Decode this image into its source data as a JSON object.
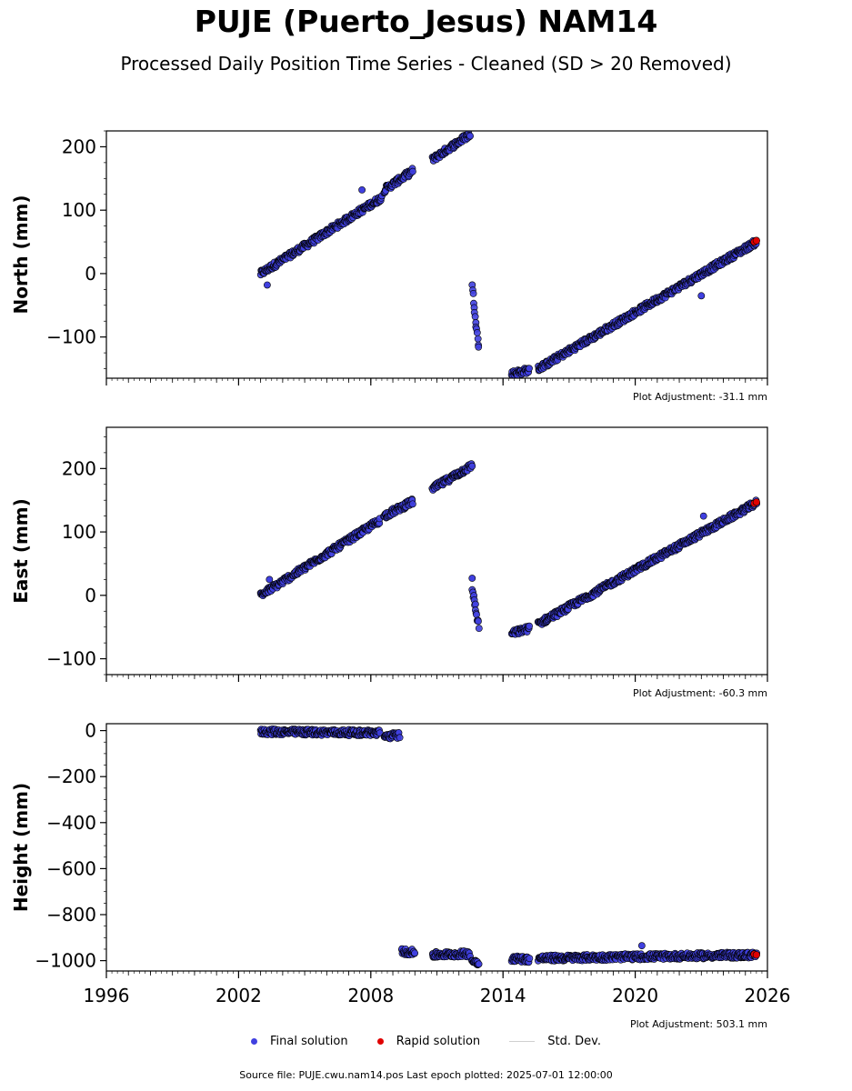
{
  "title": "PUJE (Puerto_Jesus) NAM14",
  "subtitle": "Processed Daily Position Time Series - Cleaned (SD > 20 Removed)",
  "source_line": "Source file: PUJE.cwu.nam14.pos  Last epoch plotted: 2025-07-01 12:00:00",
  "legend": {
    "final": "Final solution",
    "rapid": "Rapid solution",
    "stddev": "Std. Dev."
  },
  "colors": {
    "final": "#4040e0",
    "rapid": "#e00000",
    "stddev": "#d0d0d0",
    "edge": "#000000"
  },
  "chart_data": [
    {
      "type": "scatter",
      "ylabel": "North (mm)",
      "adjustment": "Plot Adjustment: -31.1 mm",
      "xlim": [
        1996,
        2026
      ],
      "ylim": [
        -165,
        225
      ],
      "yticks": [
        -100,
        0,
        100,
        200
      ],
      "xticks": [
        1996,
        2002,
        2008,
        2014,
        2020,
        2026
      ],
      "show_xticklabels": false,
      "segments": [
        {
          "x0": 2003.0,
          "x1": 2008.5,
          "y0": 0,
          "y1": 120
        },
        {
          "x0": 2008.6,
          "x1": 2009.9,
          "y0": 132,
          "y1": 162
        },
        {
          "x0": 2010.8,
          "x1": 2012.5,
          "y0": 180,
          "y1": 220
        },
        {
          "x0": 2012.6,
          "x1": 2012.9,
          "y0": -20,
          "y1": -118
        },
        {
          "x0": 2014.4,
          "x1": 2015.2,
          "y0": -158,
          "y1": -152
        },
        {
          "x0": 2015.6,
          "x1": 2025.5,
          "y0": -150,
          "y1": 50
        }
      ],
      "outliers": [
        {
          "x": 2003.3,
          "y": -18
        },
        {
          "x": 2007.6,
          "y": 132
        },
        {
          "x": 2023.0,
          "y": -35
        }
      ],
      "rapid": [
        {
          "x": 2025.4,
          "y": 50
        },
        {
          "x": 2025.5,
          "y": 52
        }
      ]
    },
    {
      "type": "scatter",
      "ylabel": "East (mm)",
      "adjustment": "Plot Adjustment: -60.3 mm",
      "xlim": [
        1996,
        2026
      ],
      "ylim": [
        -125,
        265
      ],
      "yticks": [
        -100,
        0,
        100,
        200
      ],
      "xticks": [
        1996,
        2002,
        2008,
        2014,
        2020,
        2026
      ],
      "show_xticklabels": false,
      "segments": [
        {
          "x0": 2003.0,
          "x1": 2008.4,
          "y0": 0,
          "y1": 118
        },
        {
          "x0": 2008.6,
          "x1": 2009.9,
          "y0": 125,
          "y1": 148
        },
        {
          "x0": 2010.8,
          "x1": 2012.6,
          "y0": 168,
          "y1": 205
        },
        {
          "x0": 2012.6,
          "x1": 2012.9,
          "y0": 10,
          "y1": -50
        },
        {
          "x0": 2014.4,
          "x1": 2015.2,
          "y0": -60,
          "y1": -52
        },
        {
          "x0": 2015.6,
          "x1": 2025.5,
          "y0": -45,
          "y1": 146
        }
      ],
      "outliers": [
        {
          "x": 2003.4,
          "y": 25
        },
        {
          "x": 2012.6,
          "y": 27
        },
        {
          "x": 2023.1,
          "y": 125
        }
      ],
      "rapid": [
        {
          "x": 2025.4,
          "y": 145
        },
        {
          "x": 2025.5,
          "y": 147
        }
      ]
    },
    {
      "type": "scatter",
      "ylabel": "Height (mm)",
      "adjustment": "Plot Adjustment: 503.1 mm",
      "xlim": [
        1996,
        2026
      ],
      "ylim": [
        -1045,
        30
      ],
      "yticks": [
        -1000,
        -800,
        -600,
        -400,
        -200,
        0
      ],
      "xticks": [
        1996,
        2002,
        2008,
        2014,
        2020,
        2026
      ],
      "show_xticklabels": true,
      "segments": [
        {
          "x0": 2003.0,
          "x1": 2008.4,
          "y0": -5,
          "y1": -10
        },
        {
          "x0": 2008.6,
          "x1": 2009.3,
          "y0": -25,
          "y1": -20
        },
        {
          "x0": 2009.4,
          "x1": 2010.0,
          "y0": -960,
          "y1": -965
        },
        {
          "x0": 2010.8,
          "x1": 2012.5,
          "y0": -975,
          "y1": -970
        },
        {
          "x0": 2012.6,
          "x1": 2012.9,
          "y0": -1000,
          "y1": -1010
        },
        {
          "x0": 2014.4,
          "x1": 2015.2,
          "y0": -990,
          "y1": -995
        },
        {
          "x0": 2015.6,
          "x1": 2025.5,
          "y0": -990,
          "y1": -975
        }
      ],
      "outliers": [
        {
          "x": 2020.3,
          "y": -935
        }
      ],
      "rapid": [
        {
          "x": 2025.4,
          "y": -972
        },
        {
          "x": 2025.5,
          "y": -975
        }
      ]
    }
  ]
}
